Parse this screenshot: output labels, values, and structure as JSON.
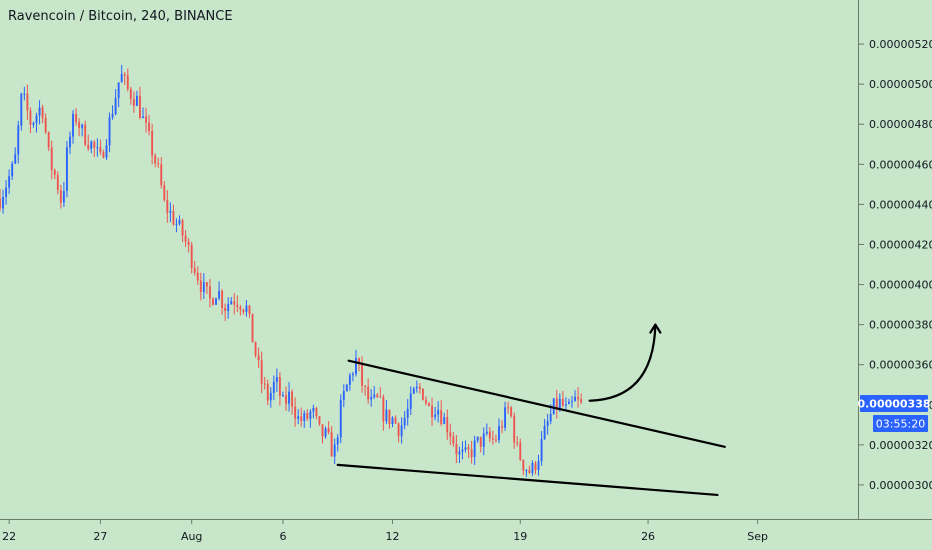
{
  "header": {
    "title": "Ravencoin / Bitcoin, 240, BINANCE"
  },
  "colors": {
    "background": "#c8e6c9",
    "up": "#2962ff",
    "down": "#ef5350",
    "drawing": "#000000",
    "tag": "#2962ff"
  },
  "chart_data": {
    "type": "candlestick",
    "title": "Ravencoin / Bitcoin, 240, BINANCE",
    "y_ticks": [
      "0.00000300",
      "0.00000320",
      "0.00000340",
      "0.00000360",
      "0.00000380",
      "0.00000400",
      "0.00000420",
      "0.00000440",
      "0.00000460",
      "0.00000480",
      "0.00000500",
      "0.00000520"
    ],
    "ylim": [
      2.83e-06,
      5.42e-06
    ],
    "x_ticks": [
      "22",
      "27",
      "Aug",
      "6",
      "12",
      "19",
      "26",
      "Sep"
    ],
    "x_tick_days": [
      0,
      5,
      10,
      15,
      21,
      28,
      35,
      41
    ],
    "xlim": [
      -0.5,
      46.5
    ],
    "current_price": "0.00000338",
    "countdown": "03:55:20",
    "series": [
      {
        "close_path_points": [
          [
            -0.5,
            443
          ],
          [
            0.3,
            460
          ],
          [
            0.7,
            495
          ],
          [
            1.2,
            480
          ],
          [
            1.8,
            490
          ],
          [
            2.2,
            462
          ],
          [
            2.6,
            452
          ],
          [
            2.9,
            440
          ],
          [
            3.2,
            468
          ],
          [
            3.6,
            485
          ],
          [
            4.0,
            476
          ],
          [
            4.5,
            470
          ],
          [
            5.0,
            462
          ],
          [
            5.4,
            477
          ],
          [
            5.8,
            493
          ],
          [
            6.1,
            505
          ],
          [
            6.5,
            497
          ],
          [
            7.0,
            492
          ],
          [
            7.4,
            480
          ],
          [
            7.8,
            468
          ],
          [
            8.2,
            455
          ],
          [
            8.5,
            440
          ],
          [
            9.0,
            433
          ],
          [
            9.5,
            425
          ],
          [
            9.8,
            418
          ],
          [
            10.2,
            408
          ],
          [
            10.6,
            398
          ],
          [
            11.0,
            392
          ],
          [
            11.4,
            398
          ],
          [
            11.8,
            389
          ],
          [
            12.2,
            393
          ],
          [
            12.6,
            392
          ],
          [
            13.0,
            388
          ],
          [
            13.4,
            370
          ],
          [
            13.8,
            352
          ],
          [
            14.2,
            343
          ],
          [
            14.6,
            352
          ],
          [
            15.0,
            340
          ],
          [
            15.4,
            345
          ],
          [
            15.8,
            333
          ],
          [
            16.2,
            332
          ],
          [
            16.6,
            337
          ],
          [
            17.0,
            326
          ],
          [
            17.4,
            324
          ],
          [
            17.8,
            315
          ],
          [
            18.2,
            340
          ],
          [
            18.6,
            352
          ],
          [
            19.0,
            362
          ],
          [
            19.4,
            348
          ],
          [
            19.8,
            340
          ],
          [
            20.2,
            342
          ],
          [
            20.6,
            334
          ],
          [
            21.0,
            333
          ],
          [
            21.4,
            328
          ],
          [
            21.8,
            336
          ],
          [
            22.2,
            346
          ],
          [
            22.6,
            348
          ],
          [
            23.0,
            338
          ],
          [
            23.4,
            340
          ],
          [
            23.8,
            333
          ],
          [
            24.2,
            326
          ],
          [
            24.6,
            315
          ],
          [
            25.0,
            314
          ],
          [
            25.4,
            318
          ],
          [
            25.8,
            322
          ],
          [
            26.2,
            323
          ],
          [
            26.6,
            322
          ],
          [
            27.0,
            331
          ],
          [
            27.4,
            339
          ],
          [
            27.8,
            318
          ],
          [
            28.2,
            310
          ],
          [
            28.6,
            306
          ],
          [
            29.0,
            315
          ],
          [
            29.4,
            328
          ],
          [
            29.8,
            338
          ],
          [
            30.2,
            341
          ],
          [
            30.6,
            336
          ],
          [
            31.0,
            342
          ],
          [
            31.4,
            339
          ]
        ]
      }
    ],
    "annotations": [
      {
        "type": "trendline",
        "from": [
          18.6,
          362
        ],
        "to": [
          39.2,
          319
        ]
      },
      {
        "type": "trendline",
        "from": [
          18.0,
          310
        ],
        "to": [
          38.8,
          295
        ]
      },
      {
        "type": "arrow",
        "from": [
          31.8,
          342
        ],
        "to": [
          35.4,
          380
        ]
      }
    ]
  }
}
